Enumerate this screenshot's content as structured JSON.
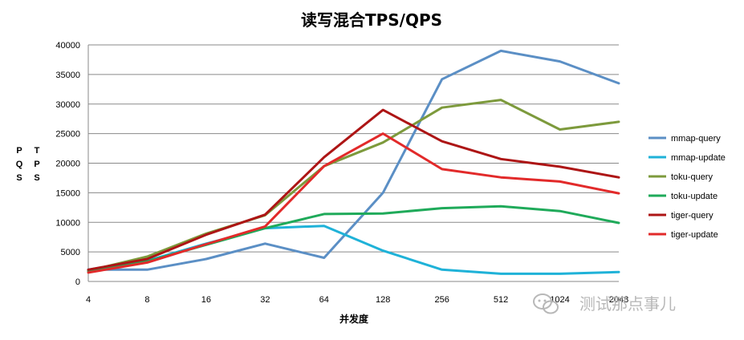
{
  "chart_data": {
    "type": "line",
    "title": "读写混合TPS/QPS",
    "xlabel": "并发度",
    "ylabel_left": [
      "P",
      "Q",
      "S"
    ],
    "ylabel_right": [
      "T",
      "P",
      "S"
    ],
    "categories": [
      "4",
      "8",
      "16",
      "32",
      "64",
      "128",
      "256",
      "512",
      "1024",
      "2048"
    ],
    "ylim": [
      0,
      40000
    ],
    "yticks": [
      0,
      5000,
      10000,
      15000,
      20000,
      25000,
      30000,
      35000,
      40000
    ],
    "grid": true,
    "legend_position": "right",
    "series": [
      {
        "name": "mmap-query",
        "color": "#5b8fc5",
        "values": [
          2000,
          2000,
          3800,
          6400,
          4000,
          15000,
          34200,
          39000,
          37200,
          33500
        ]
      },
      {
        "name": "mmap-update",
        "color": "#1fb2d8",
        "values": [
          2000,
          3500,
          6400,
          9000,
          9400,
          5200,
          2000,
          1300,
          1300,
          1600
        ]
      },
      {
        "name": "toku-query",
        "color": "#7d9a3c",
        "values": [
          1800,
          4200,
          8100,
          11200,
          19500,
          23500,
          29400,
          30700,
          25700,
          27000
        ]
      },
      {
        "name": "toku-update",
        "color": "#1faa5a",
        "values": [
          1700,
          3400,
          6200,
          9000,
          11400,
          11500,
          12400,
          12700,
          11900,
          9900
        ]
      },
      {
        "name": "tiger-query",
        "color": "#ad1515",
        "values": [
          2000,
          3800,
          7900,
          11300,
          21000,
          29000,
          23700,
          20700,
          19400,
          17600
        ]
      },
      {
        "name": "tiger-update",
        "color": "#e22a2a",
        "values": [
          1500,
          3200,
          6300,
          9300,
          19500,
          25000,
          19000,
          17600,
          16900,
          14900
        ]
      }
    ]
  },
  "watermark": {
    "text": "测试那点事儿",
    "icon": "wechat-icon"
  }
}
